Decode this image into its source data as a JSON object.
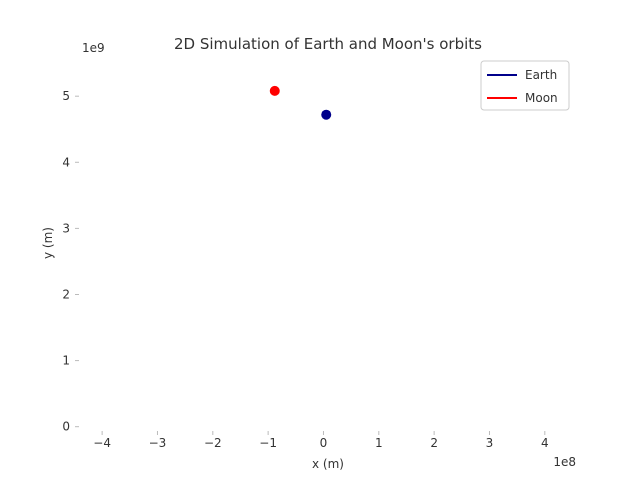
{
  "chart_data": {
    "type": "scatter",
    "title": "2D Simulation of Earth and Moon's orbits",
    "xlabel": "x (m)",
    "ylabel": "y (m)",
    "x_offset_label": "1e8",
    "y_offset_label": "1e9",
    "xlim": [
      -4.4,
      4.6
    ],
    "ylim": [
      -0.05,
      5.85
    ],
    "x_ticks": [
      {
        "value": -4,
        "label": "−4"
      },
      {
        "value": -3,
        "label": "−3"
      },
      {
        "value": -2,
        "label": "−2"
      },
      {
        "value": -1,
        "label": "−1"
      },
      {
        "value": 0,
        "label": "0"
      },
      {
        "value": 1,
        "label": "1"
      },
      {
        "value": 2,
        "label": "2"
      },
      {
        "value": 3,
        "label": "3"
      },
      {
        "value": 4,
        "label": "4"
      }
    ],
    "y_ticks": [
      {
        "value": 0,
        "label": "0"
      },
      {
        "value": 1,
        "label": "1"
      },
      {
        "value": 2,
        "label": "2"
      },
      {
        "value": 3,
        "label": "3"
      },
      {
        "value": 4,
        "label": "4"
      },
      {
        "value": 5,
        "label": "5"
      }
    ],
    "grid": false,
    "legend_position": "top-right",
    "series": [
      {
        "name": "Earth",
        "color": "#00008b",
        "points": [
          {
            "x": 0.05,
            "y": 4.72
          }
        ]
      },
      {
        "name": "Moon",
        "color": "#ff0000",
        "points": [
          {
            "x": -0.88,
            "y": 5.08
          }
        ]
      }
    ]
  }
}
